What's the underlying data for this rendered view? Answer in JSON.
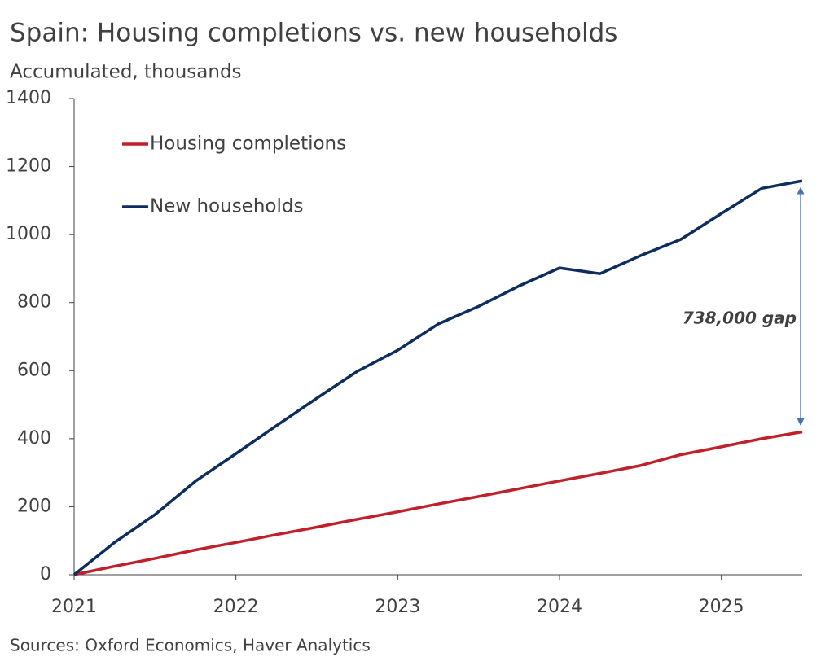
{
  "chart_data": {
    "type": "line",
    "title": "Spain: Housing completions vs. new households",
    "subtitle": "Accumulated, thousands",
    "source": "Sources: Oxford Economics, Haver Analytics",
    "annotation": "738,000 gap",
    "x": [
      2021,
      2021.25,
      2021.5,
      2021.75,
      2022,
      2022.25,
      2022.5,
      2022.75,
      2023,
      2023.25,
      2023.5,
      2023.75,
      2024,
      2024.25,
      2024.5,
      2024.75,
      2025,
      2025.25,
      2025.5
    ],
    "series": [
      {
        "name": "Housing completions",
        "color": "#c0202a",
        "values": [
          0,
          25,
          48,
          73,
          95,
          118,
          140,
          163,
          185,
          208,
          230,
          253,
          276,
          298,
          321,
          353,
          376,
          400,
          420
        ]
      },
      {
        "name": "New households",
        "color": "#0c2d5e",
        "values": [
          0,
          95,
          177,
          275,
          356,
          438,
          519,
          598,
          660,
          737,
          789,
          849,
          902,
          885,
          938,
          986,
          1062,
          1136,
          1158
        ]
      }
    ],
    "xlim": [
      2021,
      2025.5
    ],
    "xticks": [
      2021,
      2022,
      2023,
      2024,
      2025
    ],
    "ylim": [
      0,
      1400
    ],
    "yticks": [
      0,
      200,
      400,
      600,
      800,
      1000,
      1200,
      1400
    ],
    "grid": false,
    "legend": "top-left"
  }
}
